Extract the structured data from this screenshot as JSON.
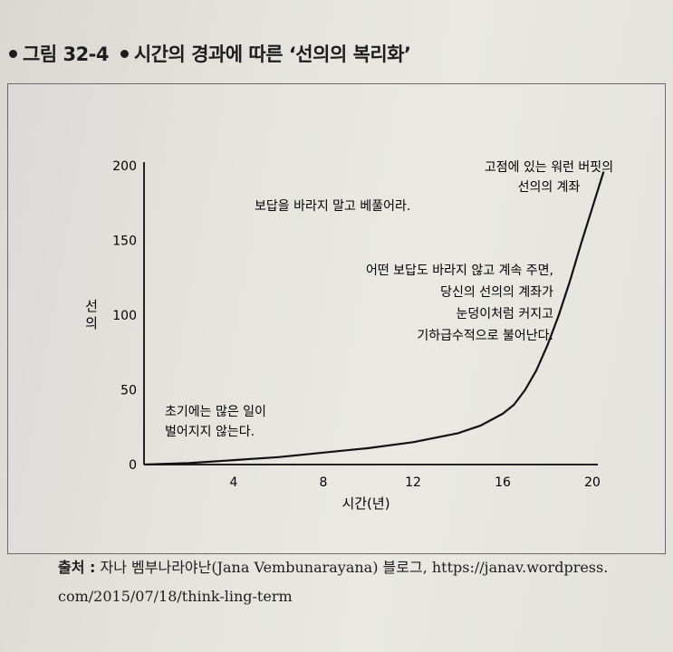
{
  "caption": {
    "figure": "그림 32-4",
    "title": "시간의 경과에 따른 ‘선의의 복리화’"
  },
  "source": {
    "label": "출처 :",
    "line1": "자나 벰부나라야난(Jana Vembunarayana) 블로그, https://janav.wordpress.",
    "line2": "com/2015/07/18/think-ling-term"
  },
  "chart_data": {
    "type": "line",
    "xlabel": "시간(년)",
    "ylabel": "선의",
    "xlim": [
      0,
      20
    ],
    "ylim": [
      0,
      200
    ],
    "xticks": [
      4,
      8,
      12,
      16,
      20
    ],
    "yticks": [
      0,
      50,
      100,
      150,
      200
    ],
    "grid": false,
    "series": [
      {
        "x": [
          0,
          2,
          4,
          6,
          8,
          10,
          12,
          14,
          15,
          16,
          16.5,
          17,
          17.5,
          18,
          18.5,
          19,
          19.5,
          20,
          20.5
        ],
        "y": [
          0,
          1,
          3,
          5,
          8,
          11,
          15,
          21,
          26,
          34,
          40,
          50,
          63,
          80,
          100,
          123,
          148,
          172,
          196
        ]
      }
    ],
    "annotations": [
      {
        "lines": [
          "고점에 있는 워런 버핏의",
          "선의의 계좌"
        ]
      },
      {
        "lines": [
          "보답을 바라지 말고 베풀어라."
        ]
      },
      {
        "lines": [
          "어떤 보답도 바라지 않고 계속 주면,",
          "당신의 선의의 계좌가",
          "눈덩이처럼 커지고",
          "기하급수적으로 불어난다."
        ]
      },
      {
        "lines": [
          "초기에는 많은 일이",
          "벌어지지 않는다."
        ]
      }
    ]
  }
}
